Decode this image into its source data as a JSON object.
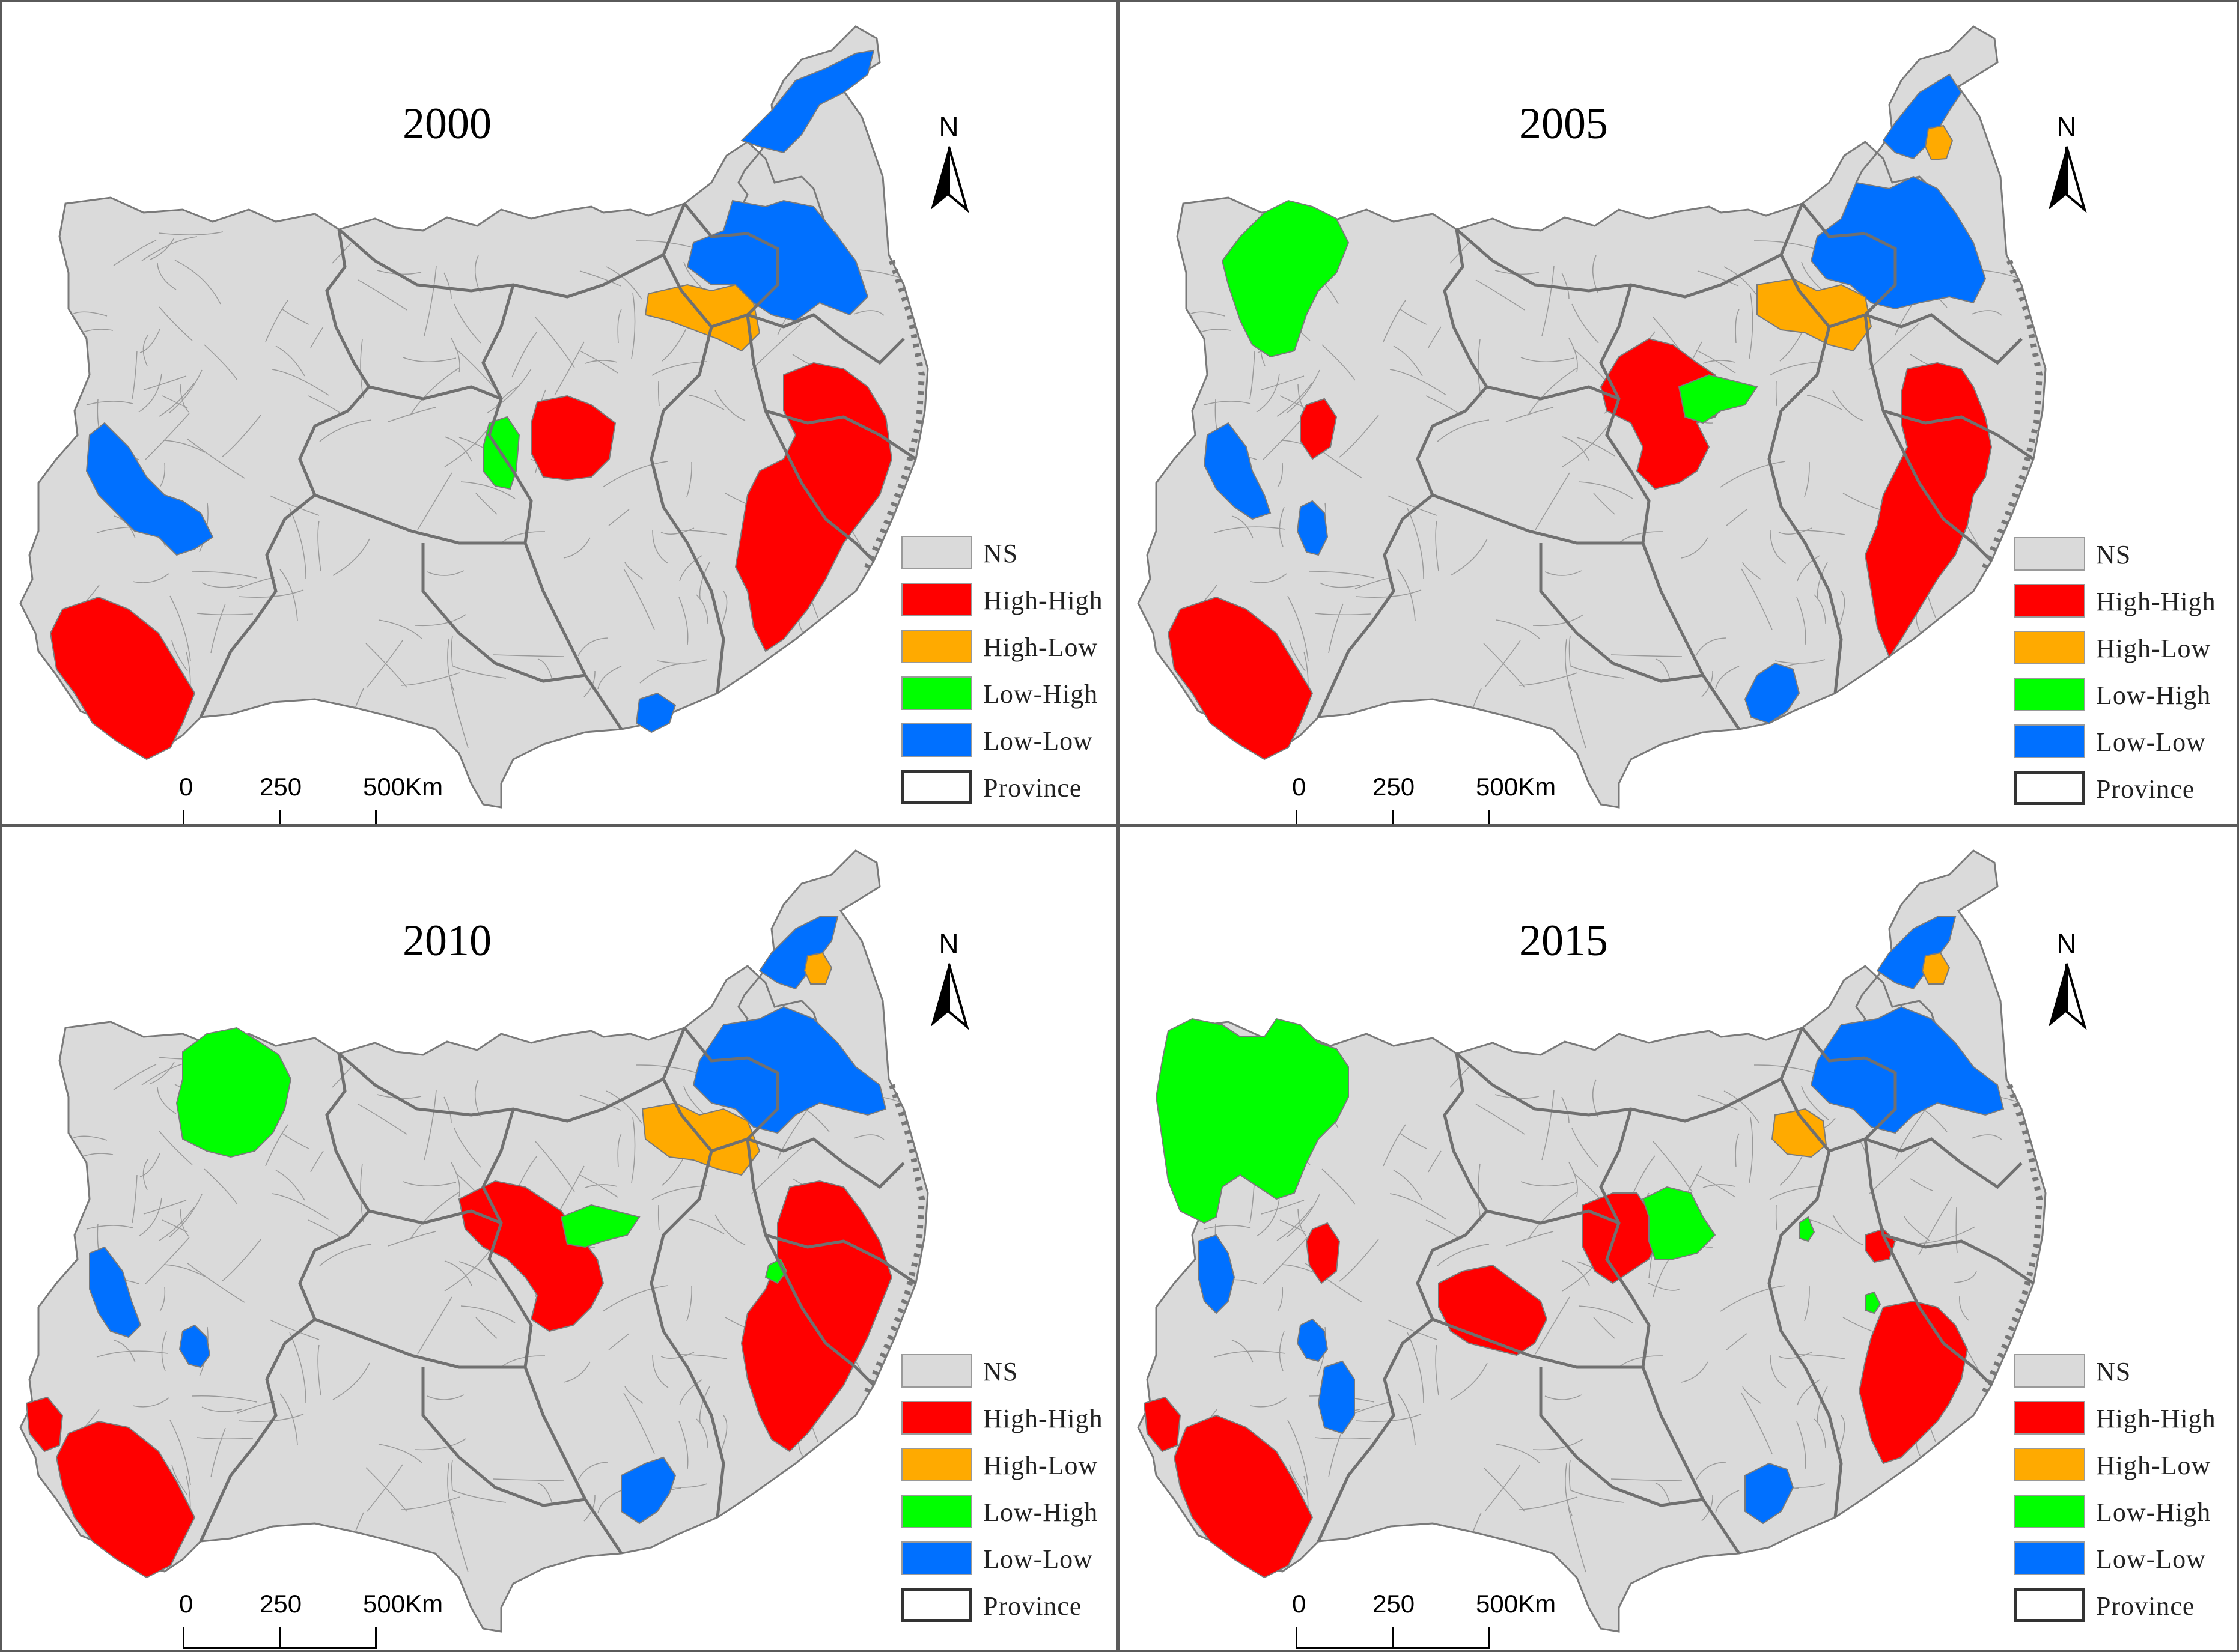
{
  "figure": {
    "panels": [
      {
        "id": "p2000",
        "year": "2000"
      },
      {
        "id": "p2005",
        "year": "2005"
      },
      {
        "id": "p2010",
        "year": "2010"
      },
      {
        "id": "p2015",
        "year": "2015"
      }
    ],
    "north_label": "N",
    "legend": [
      {
        "label": "NS",
        "color": "#dadada"
      },
      {
        "label": "High-High",
        "color": "#ff0000"
      },
      {
        "label": "High-Low",
        "color": "#ffaa00"
      },
      {
        "label": "Low-High",
        "color": "#00ff00"
      },
      {
        "label": "Low-Low",
        "color": "#0070ff"
      },
      {
        "label": "Province",
        "color": "#ffffff"
      }
    ],
    "scale": {
      "ticks": [
        "0",
        "250",
        "500Km"
      ]
    },
    "colors": {
      "ns": "#dadada",
      "high_high": "#ff0000",
      "high_low": "#ffaa00",
      "low_high": "#00ff00",
      "low_low": "#0070ff",
      "province_border": "#707070",
      "county_border": "#9a9a9a",
      "panel_border": "#5a5a5a"
    }
  }
}
